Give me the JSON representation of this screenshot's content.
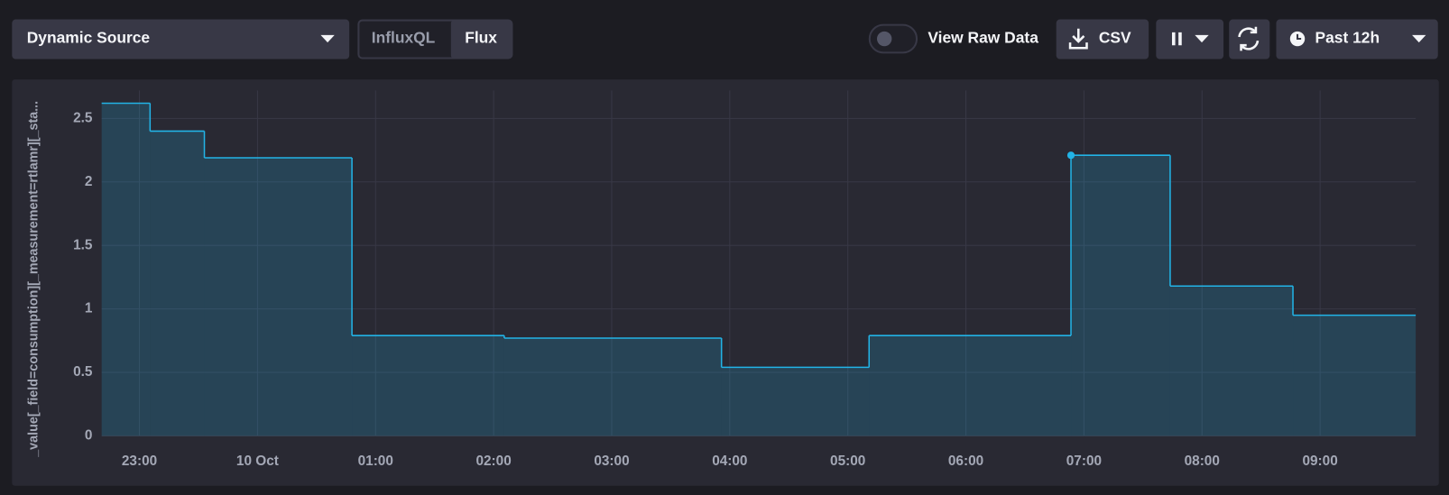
{
  "toolbar": {
    "source": "Dynamic Source",
    "influxql": "InfluxQL",
    "flux": "Flux",
    "raw_data": "View Raw Data",
    "csv": "CSV",
    "time_range": "Past 12h"
  },
  "chart_data": {
    "type": "line",
    "step": "after",
    "y_label": "_value[_field=consumption][_measurement=rtlamr][_sta...",
    "color": "#22b3e6",
    "x": [
      22.68,
      23.09,
      23.55,
      24.8,
      26.09,
      27.93,
      29.18,
      30.89,
      31.73,
      32.77
    ],
    "series": [
      {
        "values": [
          2.62,
          2.4,
          2.19,
          0.79,
          0.77,
          0.54,
          0.79,
          2.21,
          1.18,
          0.95
        ]
      }
    ],
    "xlim": [
      22.68,
      33.81
    ],
    "xticks": [
      {
        "value": 23,
        "label": "23:00"
      },
      {
        "value": 24,
        "label": "10 Oct"
      },
      {
        "value": 25,
        "label": "01:00"
      },
      {
        "value": 26,
        "label": "02:00"
      },
      {
        "value": 27,
        "label": "03:00"
      },
      {
        "value": 28,
        "label": "04:00"
      },
      {
        "value": 29,
        "label": "05:00"
      },
      {
        "value": 30,
        "label": "06:00"
      },
      {
        "value": 31,
        "label": "07:00"
      },
      {
        "value": 32,
        "label": "08:00"
      },
      {
        "value": 33,
        "label": "09:00"
      }
    ],
    "ylim": [
      0,
      2.72
    ],
    "yticks": [
      0,
      0.5,
      1,
      1.5,
      2,
      2.5
    ],
    "grid": true,
    "highlight_index": 7
  }
}
